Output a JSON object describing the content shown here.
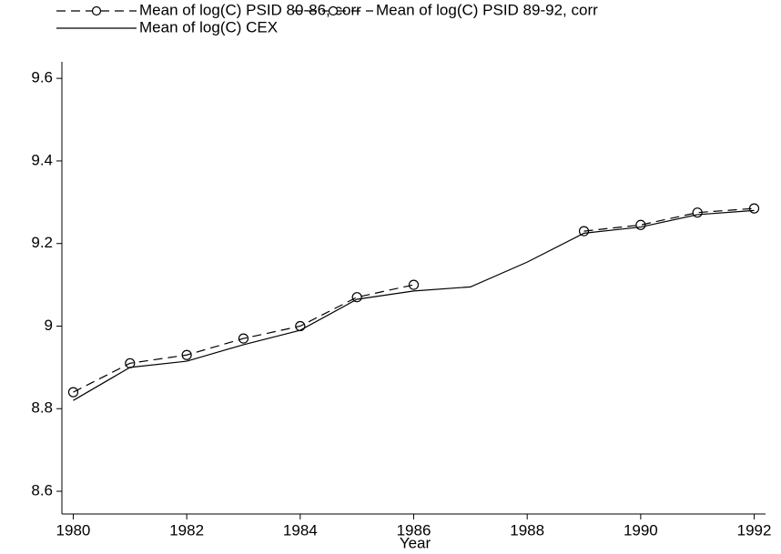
{
  "chart_data": {
    "type": "line",
    "x_label": "Year",
    "x": [
      1980,
      1981,
      1982,
      1983,
      1984,
      1985,
      1986,
      1987,
      1988,
      1989,
      1990,
      1991,
      1992
    ],
    "series": [
      {
        "name": "Mean of log(C) PSID 80-86, corr",
        "color": "#000000",
        "style": "dashed",
        "marker": "circle",
        "values": [
          8.84,
          8.91,
          8.93,
          8.97,
          9.0,
          9.07,
          9.1,
          null,
          null,
          null,
          null,
          null,
          null
        ]
      },
      {
        "name": "Mean of log(C) PSID 89-92, corr",
        "color": "#000000",
        "style": "dashed",
        "marker": "circle",
        "values": [
          null,
          null,
          null,
          null,
          null,
          null,
          null,
          null,
          null,
          9.23,
          9.245,
          9.275,
          9.285
        ]
      },
      {
        "name": "Mean of log(C) CEX",
        "color": "#000000",
        "style": "solid",
        "marker": "none",
        "values": [
          8.82,
          8.9,
          8.915,
          8.955,
          8.99,
          9.065,
          9.085,
          9.095,
          9.155,
          9.225,
          9.24,
          9.27,
          9.28
        ]
      }
    ],
    "xlim": [
      1979.8,
      1992.2
    ],
    "xticks": [
      1980,
      1982,
      1984,
      1986,
      1988,
      1990,
      1992
    ],
    "ylim": [
      8.545,
      9.64
    ],
    "yticks": [
      8.6,
      8.8,
      9,
      9.2,
      9.4,
      9.6
    ],
    "grid": false,
    "legend": "top"
  }
}
